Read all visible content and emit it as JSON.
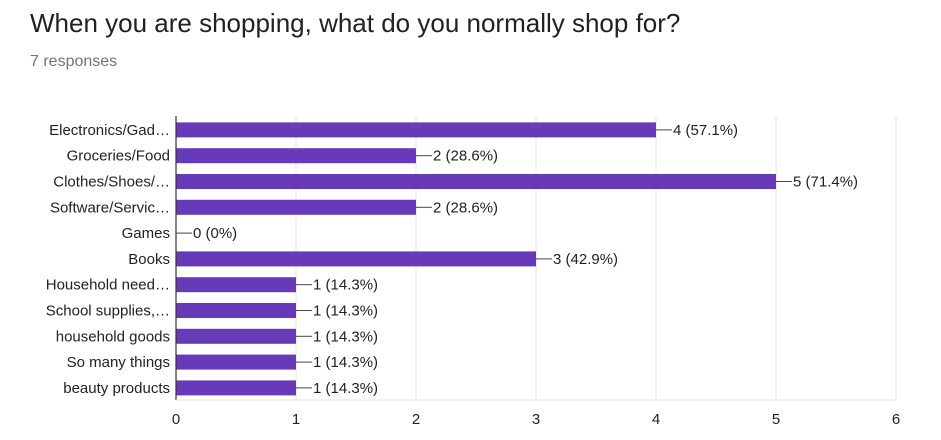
{
  "header": {
    "title": "When you are shopping, what do you normally shop for?",
    "responses": "7 responses"
  },
  "colors": {
    "bar": "#673ab7",
    "grid": "#e6e6e6",
    "axis": "#333333",
    "text": "#222222"
  },
  "chart_data": {
    "type": "bar",
    "orientation": "horizontal",
    "title": "When you are shopping, what do you normally shop for?",
    "subtitle": "7 responses",
    "categories": [
      "Electronics/Gad…",
      "Groceries/Food",
      "Clothes/Shoes/…",
      "Software/Servic…",
      "Games",
      "Books",
      "Household need…",
      "School supplies,…",
      "household goods",
      "So many things",
      "beauty products"
    ],
    "values": [
      4,
      2,
      5,
      2,
      0,
      3,
      1,
      1,
      1,
      1,
      1
    ],
    "data_labels": [
      "4 (57.1%)",
      "2 (28.6%)",
      "5 (71.4%)",
      "2 (28.6%)",
      "0 (0%)",
      "3 (42.9%)",
      "1 (14.3%)",
      "1 (14.3%)",
      "1 (14.3%)",
      "1 (14.3%)",
      "1 (14.3%)"
    ],
    "xlim": [
      0,
      6
    ],
    "xticks": [
      "0",
      "1",
      "2",
      "3",
      "4",
      "5",
      "6"
    ],
    "xlabel": "",
    "ylabel": "",
    "grid": true,
    "legend": "none"
  }
}
